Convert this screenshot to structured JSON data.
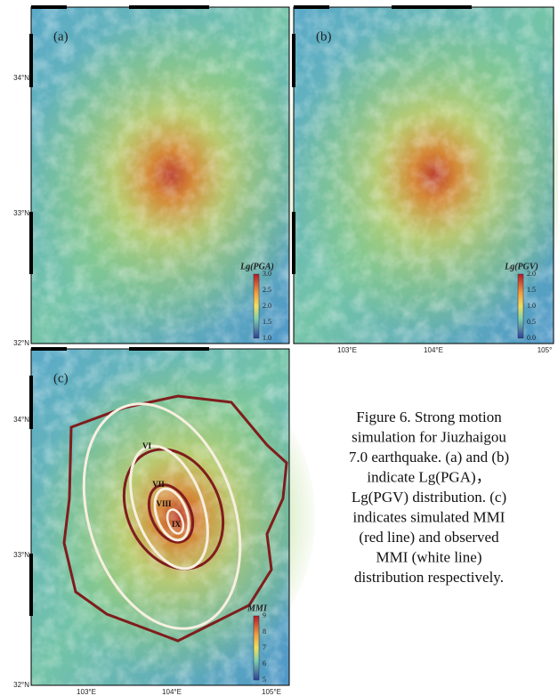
{
  "panels": [
    {
      "label": "(a)",
      "lat_labels": [
        "34°N",
        "33°N",
        "32°N"
      ],
      "colorbar": {
        "title": "Lg(PGA)",
        "ticks": [
          "3.0",
          "2.5",
          "2.0",
          "1.5",
          "1.0"
        ]
      }
    },
    {
      "label": "(b)",
      "lon_labels": [
        "103°E",
        "104°E",
        "105°"
      ],
      "colorbar": {
        "title": "Lg(PGV)",
        "ticks": [
          "2.0",
          "1.5",
          "1.0",
          "0.5",
          "0.0"
        ]
      }
    },
    {
      "label": "(c)",
      "lat_labels": [
        "34°N",
        "33°N",
        "32°N"
      ],
      "lon_labels": [
        "103°E",
        "104°E",
        "105°E"
      ],
      "colorbar": {
        "title": "MMI",
        "ticks": [
          "9",
          "8",
          "7",
          "6",
          "5"
        ]
      },
      "intensity_labels": [
        "VI",
        "VII",
        "VIII",
        "IX"
      ]
    }
  ],
  "caption": [
    "Figure 6. Strong motion",
    "simulation for Jiuzhaigou",
    "7.0 earthquake. (a) and (b)",
    "indicate Lg(PGA)，",
    "Lg(PGV) distribution. (c)",
    "indicates simulated MMI",
    "(red line) and observed",
    "MMI (white line)",
    "distribution respectively."
  ]
}
